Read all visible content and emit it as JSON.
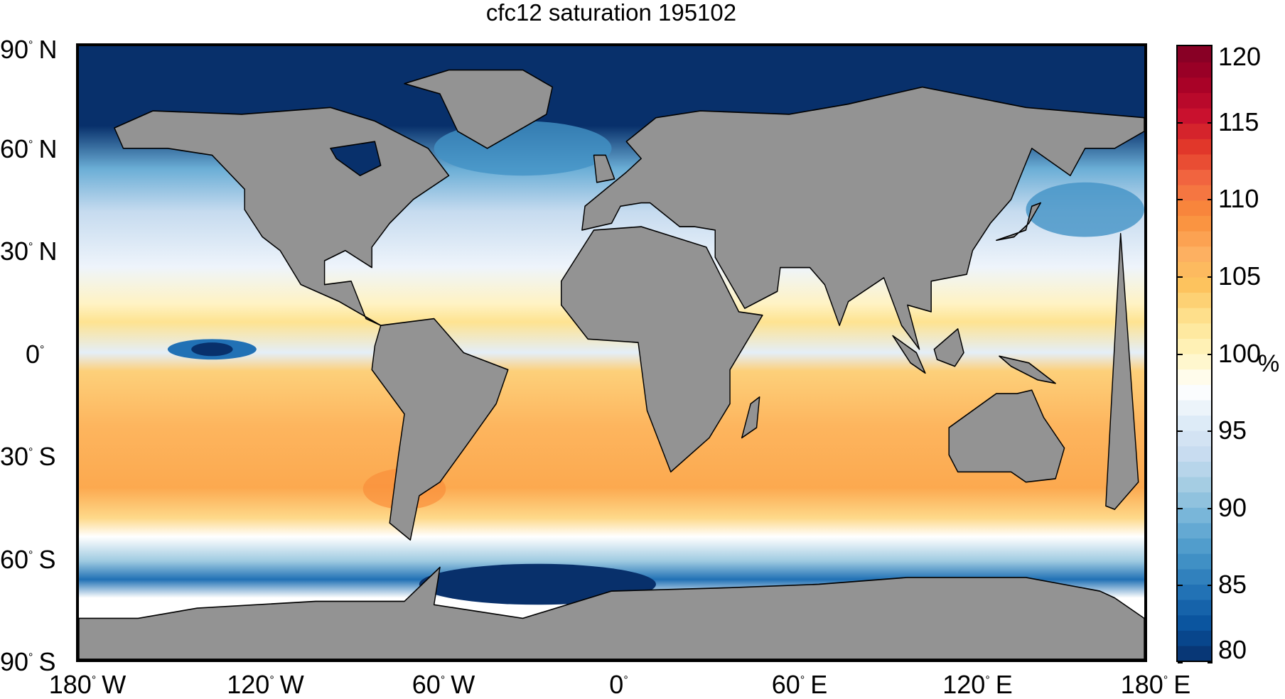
{
  "title": "cfc12 saturation 195102",
  "lat_ticks": [
    {
      "value": 90,
      "label": "90",
      "hemi": "N"
    },
    {
      "value": 60,
      "label": "60",
      "hemi": "N"
    },
    {
      "value": 30,
      "label": "30",
      "hemi": "N"
    },
    {
      "value": 0,
      "label": "0",
      "hemi": ""
    },
    {
      "value": -30,
      "label": "30",
      "hemi": "S"
    },
    {
      "value": -60,
      "label": "60",
      "hemi": "S"
    },
    {
      "value": -90,
      "label": "90",
      "hemi": "S"
    }
  ],
  "lon_ticks": [
    {
      "value": -180,
      "label": "180",
      "hemi": "W"
    },
    {
      "value": -120,
      "label": "120",
      "hemi": "W"
    },
    {
      "value": -60,
      "label": "60",
      "hemi": "W"
    },
    {
      "value": 0,
      "label": "0",
      "hemi": ""
    },
    {
      "value": 60,
      "label": "60",
      "hemi": "E"
    },
    {
      "value": 120,
      "label": "120",
      "hemi": "E"
    },
    {
      "value": 180,
      "label": "180",
      "hemi": "E"
    }
  ],
  "degree_symbol": "°",
  "colorbar": {
    "min": 80,
    "max": 120,
    "ticks": [
      "80",
      "85",
      "90",
      "95",
      "100",
      "105",
      "110",
      "115",
      "120"
    ],
    "unit": "%",
    "colormap": [
      "#08306b",
      "#08519c",
      "#2171b5",
      "#4292c6",
      "#6baed6",
      "#9ecae1",
      "#c6dbef",
      "#deebf7",
      "#ffffff",
      "#fff5c0",
      "#fee391",
      "#fdc45e",
      "#fdae61",
      "#f98e3a",
      "#f46d43",
      "#e33a2a",
      "#c8102e",
      "#a50026",
      "#7f0025"
    ]
  },
  "colors": {
    "land": "#939393",
    "coast": "#000000",
    "frame": "#000000"
  }
}
